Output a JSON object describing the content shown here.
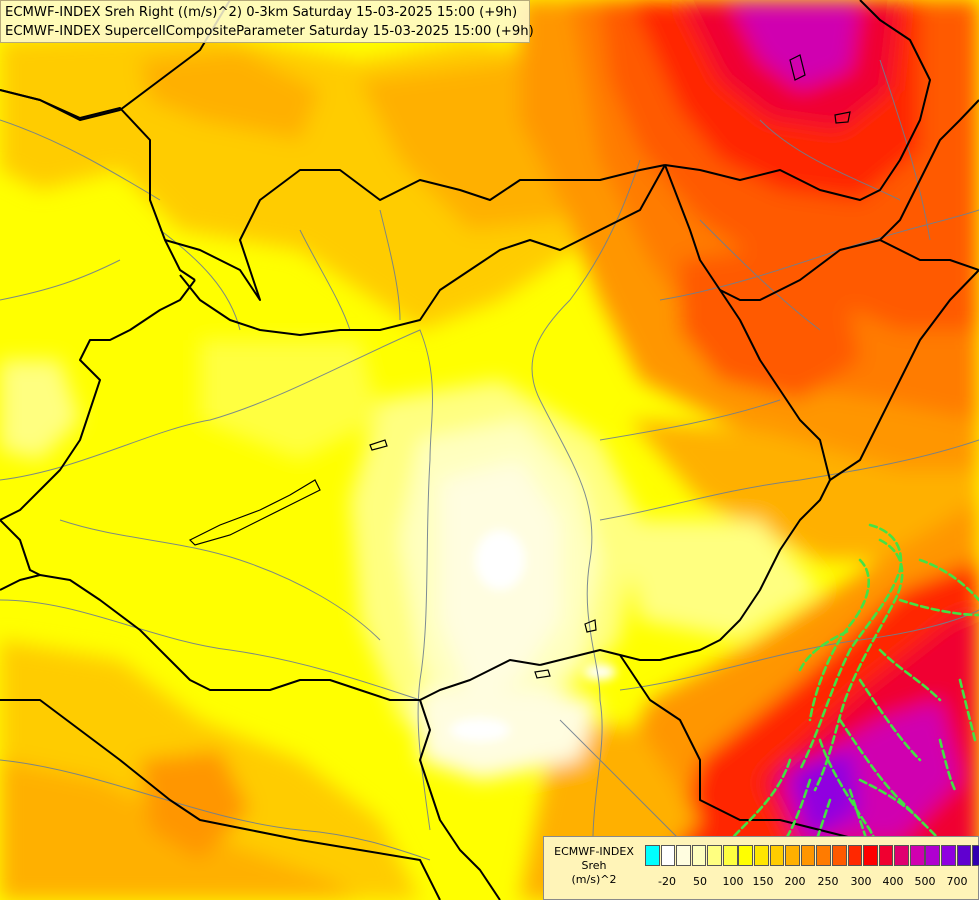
{
  "title_lines": [
    "ECMWF-INDEX Sreh Right ((m/s)^2) 0-3km Saturday 15-03-2025 15:00 (+9h)",
    "ECMWF-INDEX SupercellCompositeParameter Saturday 15-03-2025 15:00 (+9h)"
  ],
  "legend": {
    "title": [
      "ECMWF-INDEX",
      "Sreh",
      "(m/s)^2"
    ],
    "colors": [
      "#00ffff",
      "#ffffff",
      "#fffde0",
      "#ffffbf",
      "#ffff80",
      "#ffff40",
      "#ffff00",
      "#ffe600",
      "#ffcc00",
      "#ffb000",
      "#ff9600",
      "#ff7b00",
      "#ff5a00",
      "#ff2800",
      "#ff0000",
      "#f00030",
      "#e00070",
      "#d000b0",
      "#b000d0",
      "#9000e0",
      "#6000d0",
      "#3000b0",
      "#000080"
    ],
    "ticks": [
      "-20",
      "50",
      "100",
      "150",
      "200",
      "250",
      "300",
      "400",
      "500",
      "700"
    ]
  },
  "map_colors": {
    "base": "#ffff00",
    "light_yellow": "#ffff80",
    "pale": "#ffffbf",
    "cream": "#fffde0",
    "white": "#ffffff",
    "gold": "#ffe600",
    "amber": "#ffcc00",
    "orange": "#ffb000",
    "dark_orange": "#ff9600",
    "orange_red": "#ff7b00",
    "red_orange": "#ff5a00",
    "red": "#ff2800",
    "deep_red": "#ff0000",
    "crimson": "#f00030",
    "magenta": "#d000b0",
    "purple": "#9000e0",
    "scp_contour": "#44e244",
    "border": "#000000",
    "river": "#6f7f8f"
  }
}
